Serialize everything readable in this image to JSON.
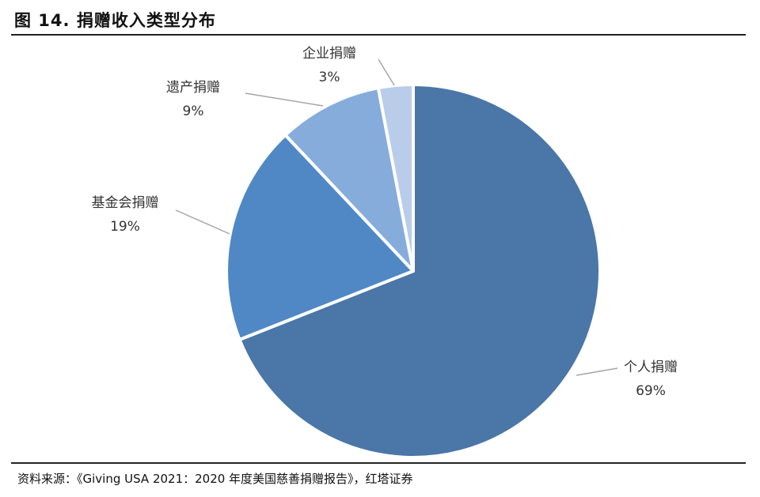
{
  "figure": {
    "title": "图 14. 捐赠收入类型分布",
    "source": "资料来源：《Giving USA 2021：2020 年度美国慈善捐赠报告》，红塔证券"
  },
  "chart_data": {
    "type": "pie",
    "title": "",
    "slices": [
      {
        "label": "个人捐赠",
        "value": 69,
        "display": "69%",
        "color": "#4a76a8"
      },
      {
        "label": "基金会捐赠",
        "value": 19,
        "display": "19%",
        "color": "#5088c6"
      },
      {
        "label": "遗产捐赠",
        "value": 9,
        "display": "9%",
        "color": "#86acdc"
      },
      {
        "label": "企业捐赠",
        "value": 3,
        "display": "3%",
        "color": "#b9cdea"
      }
    ],
    "start": "12 o'clock, clockwise",
    "legend": "none (data labels outside slices with leader lines)"
  }
}
